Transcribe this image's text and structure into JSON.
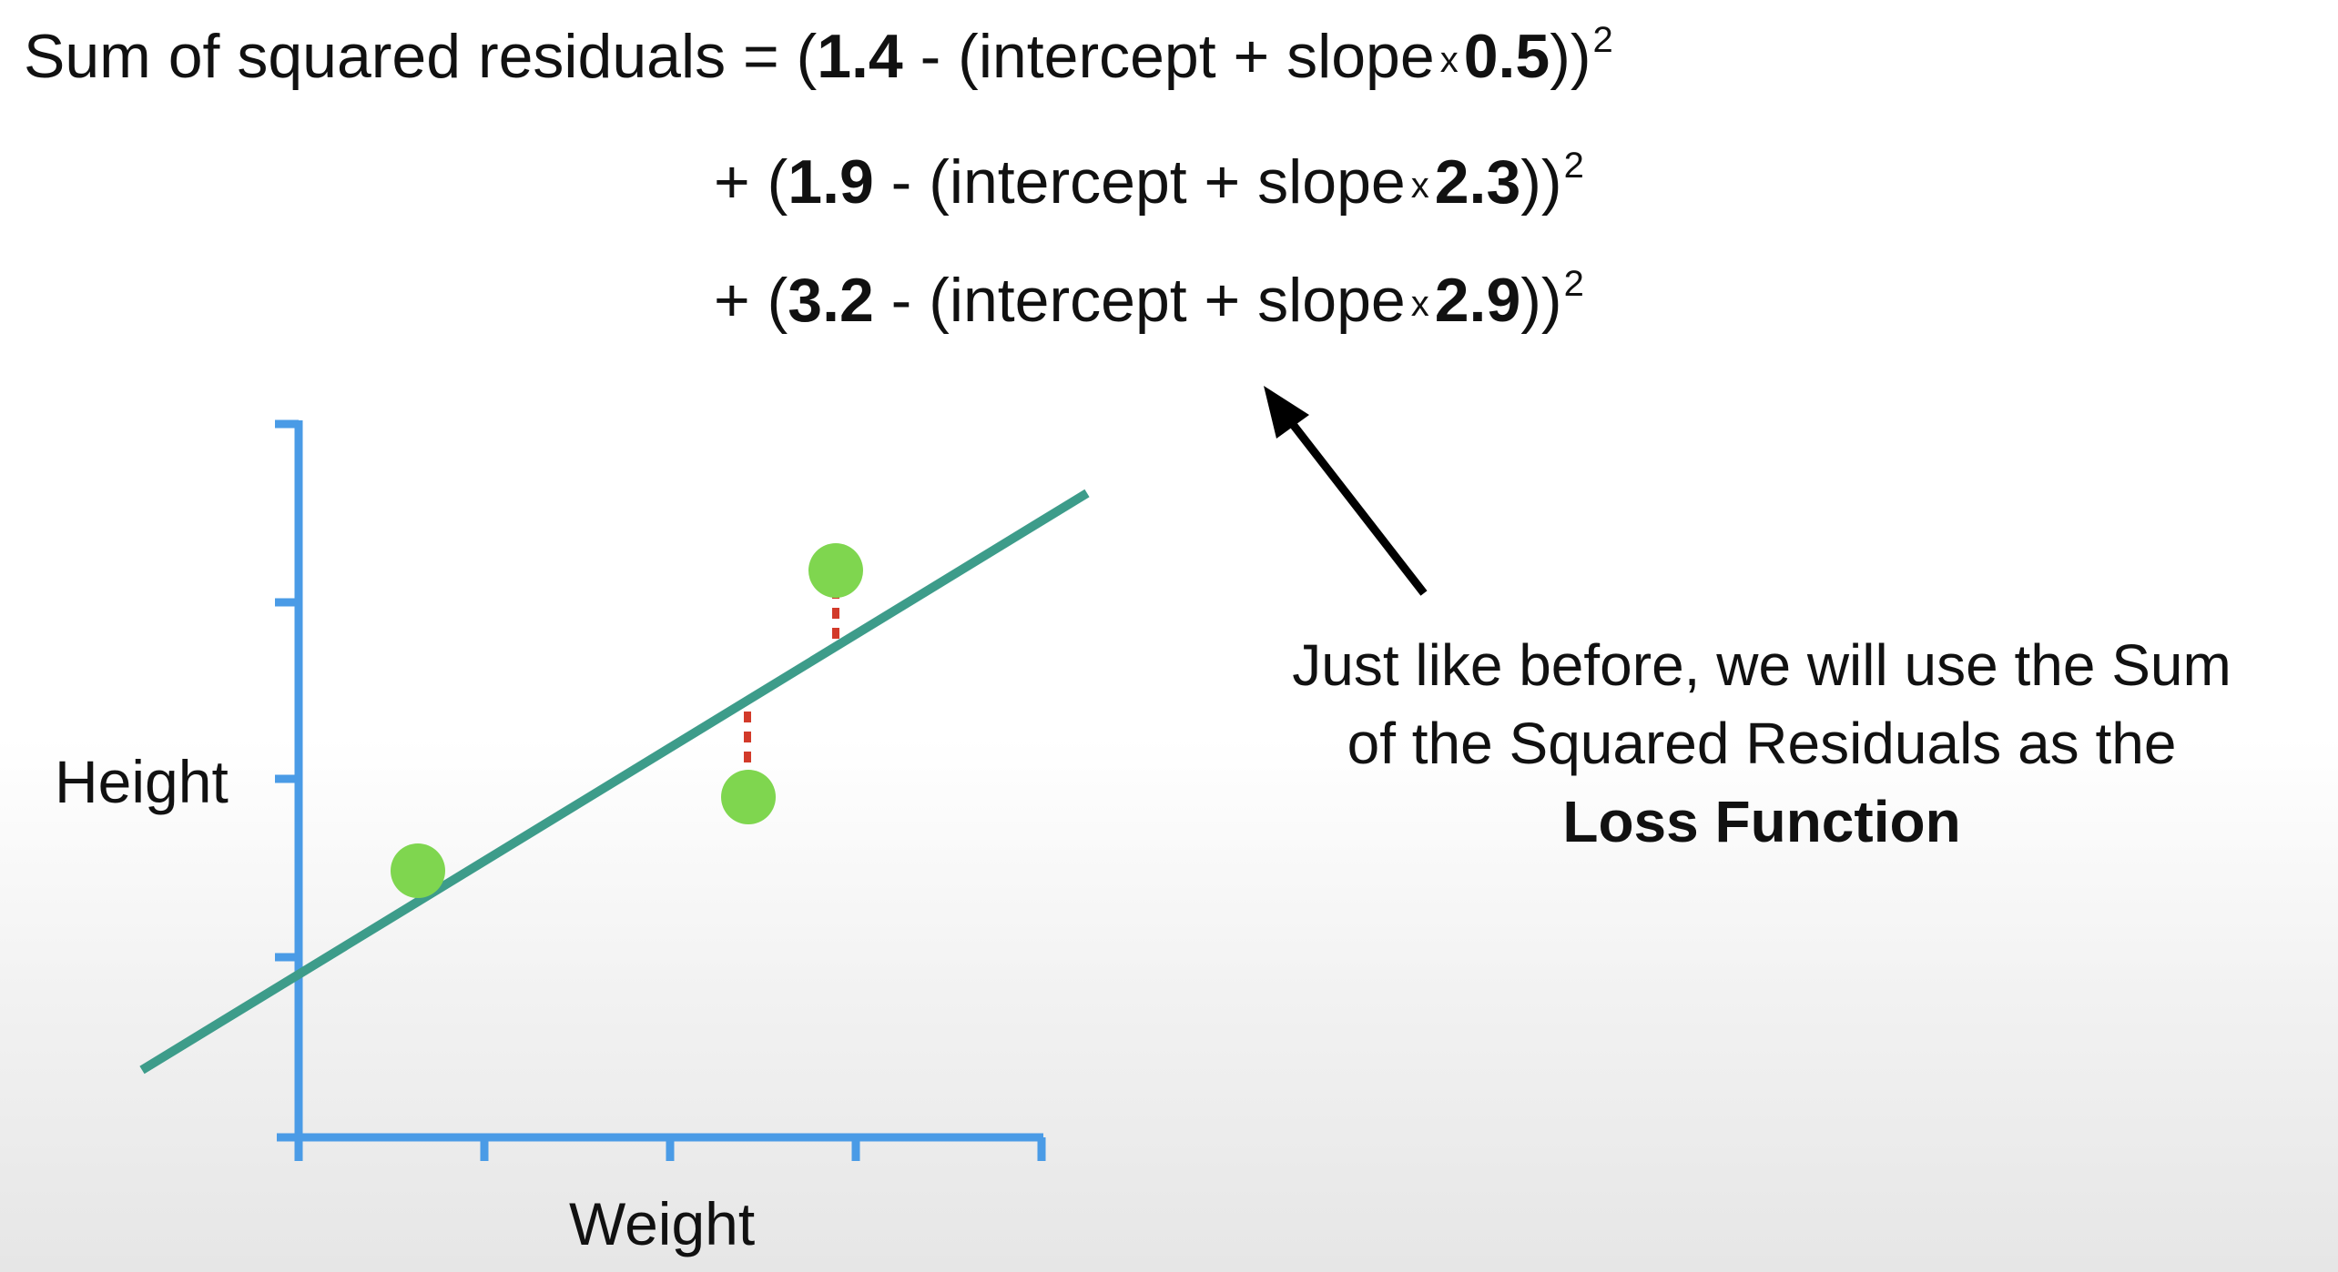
{
  "equation": {
    "line1": {
      "prefix": "Sum of squared residuals = (",
      "observed": "1.4",
      "middle": " - (intercept + slope",
      "times": "x",
      "x_value": "0.5",
      "close": "))",
      "exponent": "2"
    },
    "line2": {
      "prefix": "+ (",
      "observed": "1.9",
      "middle": " - (intercept + slope",
      "times": "x",
      "x_value": "2.3",
      "close": "))",
      "exponent": "2"
    },
    "line3": {
      "prefix": "+ (",
      "observed": "3.2",
      "middle": " - (intercept + slope",
      "times": "x",
      "x_value": "2.9",
      "close": "))",
      "exponent": "2"
    }
  },
  "callout": {
    "line1": "Just like before, we will use the Sum",
    "line2": "of the Squared Residuals as the",
    "bold": "Loss Function"
  },
  "plot": {
    "y_axis_label": "Height",
    "x_axis_label": "Weight"
  },
  "colors": {
    "axis": "#4a9be6",
    "fit_line": "#3d9c8a",
    "points": "#7fd64f",
    "residual": "#d23a2a",
    "arrow": "#000000",
    "text": "#111111"
  }
}
